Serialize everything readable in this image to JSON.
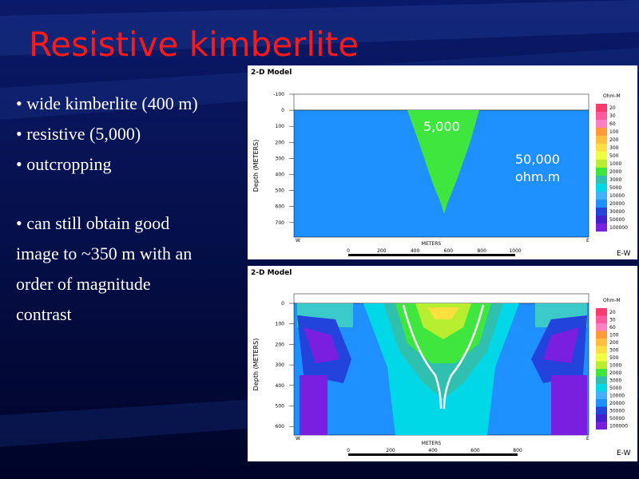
{
  "slide": {
    "title": "Resistive kimberlite",
    "bullets": [
      "• wide kimberlite (400 m)",
      "• resistive (5,000)",
      "• outcropping"
    ],
    "paragraph": [
      "• can still obtain good",
      "image to ~350 m with an",
      "order of magnitude",
      "contrast"
    ]
  },
  "panels": [
    {
      "header": "2-D Model",
      "y_label": "Depth (METERS)",
      "x_label": "METERS",
      "direction": "E-W",
      "left_corner": "W",
      "right_corner": "E",
      "depth_ticks": [
        "-100",
        "0",
        "100",
        "200",
        "300",
        "400",
        "500",
        "600",
        "700"
      ],
      "scale_ticks": [
        "0",
        "200",
        "400",
        "600",
        "800",
        "1000"
      ],
      "legend_title": "Ohm-M",
      "legend_labels": [
        "20",
        "30",
        "60",
        "100",
        "200",
        "300",
        "500",
        "1000",
        "2000",
        "3000",
        "5000",
        "10000",
        "20000",
        "30000",
        "50000",
        "100000"
      ],
      "annotations": [
        "5,000",
        "50,000",
        "ohm.m"
      ]
    },
    {
      "header": "2-D Model",
      "y_label": "Depth (METERS)",
      "x_label": "METERS",
      "direction": "E-W",
      "left_corner": "W",
      "right_corner": "E",
      "depth_ticks": [
        "0",
        "100",
        "200",
        "300",
        "400",
        "500",
        "600"
      ],
      "scale_ticks": [
        "0",
        "200",
        "400",
        "600",
        "800"
      ],
      "legend_title": "Ohm-M",
      "legend_labels": [
        "20",
        "30",
        "60",
        "100",
        "200",
        "300",
        "500",
        "1000",
        "2000",
        "3000",
        "5000",
        "10000",
        "20000",
        "30000",
        "50000",
        "100000"
      ],
      "annotations": []
    }
  ]
}
